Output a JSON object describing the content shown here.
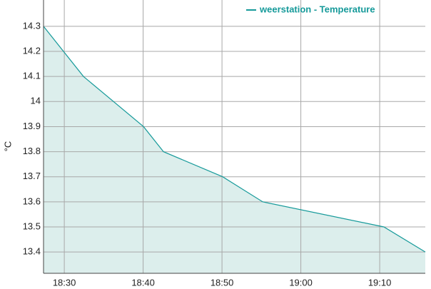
{
  "chart_data": {
    "type": "area",
    "y_label": "°C",
    "x": [
      "18:27:22",
      "18:32:26",
      "18:40:03",
      "18:42:35",
      "18:50:05",
      "18:55:10",
      "19:10:32",
      "19:15:47"
    ],
    "series": [
      {
        "name": "weerstation - Temperature",
        "color": "#169a9a",
        "fill": "#d6ebe9",
        "values": [
          14.3,
          14.1,
          13.9,
          13.8,
          13.7,
          13.6,
          13.5,
          13.4
        ]
      }
    ],
    "xlim": [
      "18:27:22",
      "19:15:47"
    ],
    "xticks": [
      "18:30",
      "18:40",
      "18:50",
      "19:00",
      "19:10"
    ],
    "ylim": [
      13.315,
      14.405
    ],
    "yticks": [
      13.4,
      13.5,
      13.6,
      13.7,
      13.8,
      13.9,
      14,
      14.1,
      14.2,
      14.3
    ],
    "grid": true,
    "legend": "top-right"
  }
}
